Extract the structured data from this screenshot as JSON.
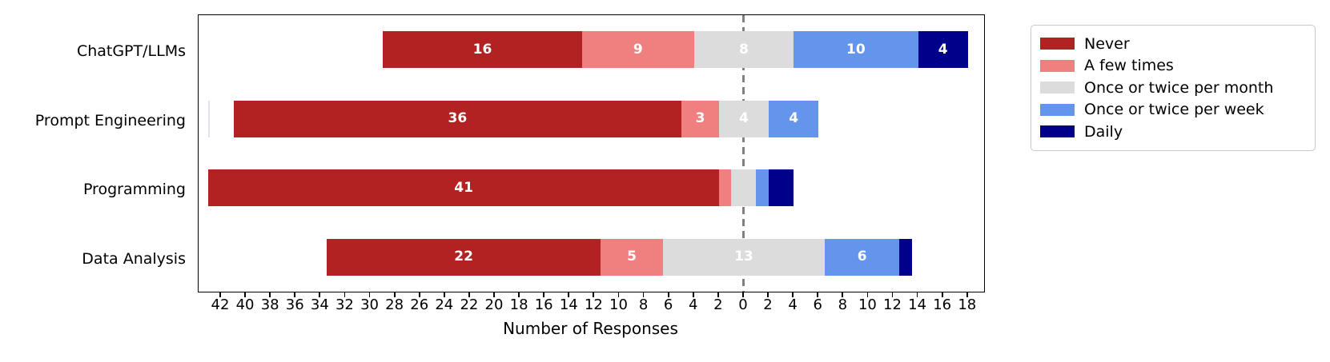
{
  "chart_data": {
    "type": "bar",
    "variant": "diverging-stacked-horizontal",
    "title": "",
    "xlabel": "Number of Responses",
    "categories": [
      "ChatGPT/LLMs",
      "Prompt Engineering",
      "Programming",
      "Data Analysis"
    ],
    "series": [
      {
        "name": "Never",
        "color": "#B22222",
        "values": [
          16,
          36,
          41,
          22
        ]
      },
      {
        "name": "A few times",
        "color": "#F08080",
        "values": [
          9,
          3,
          1,
          5
        ]
      },
      {
        "name": "Once or twice per month",
        "color": "#DCDCDC",
        "values": [
          8,
          4,
          2,
          13
        ]
      },
      {
        "name": "Once or twice per week",
        "color": "#6495ED",
        "values": [
          10,
          4,
          1,
          6
        ]
      },
      {
        "name": "Daily",
        "color": "#00008B",
        "values": [
          4,
          0,
          2,
          1
        ]
      }
    ],
    "neutral_series_index": 2,
    "total_per_category": 47,
    "bar_label_min_value": 3,
    "bar_label_color": "#ffffff",
    "xlim": [
      -43.8,
      19.3
    ],
    "x_tick_values": [
      -42,
      -40,
      -38,
      -36,
      -34,
      -32,
      -30,
      -28,
      -26,
      -24,
      -22,
      -20,
      -18,
      -16,
      -14,
      -12,
      -10,
      -8,
      -6,
      -4,
      -2,
      0,
      2,
      4,
      6,
      8,
      10,
      12,
      14,
      16,
      18
    ],
    "x_tick_label_style": "absolute-value",
    "zero_line": {
      "value": 0,
      "style": "dashed",
      "color": "#808080"
    },
    "grid": false,
    "legend_position": "outside-upper-right"
  },
  "colors": {
    "background": "#ffffff",
    "spine": "#000000",
    "legend_border": "#c9c9c9",
    "text": "#000000"
  }
}
